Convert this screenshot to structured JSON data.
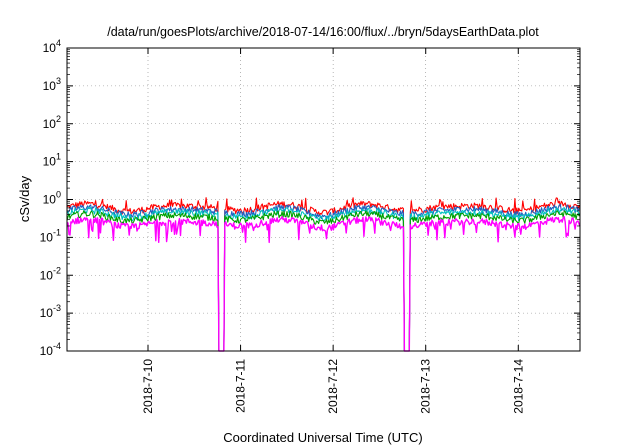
{
  "chart_data": {
    "type": "line",
    "title": "/data/run/goesPlots/archive/2018-07-14/16:00/flux/../bryn/5daysEarthData.plot",
    "xlabel": "Coordinated Universal Time (UTC)",
    "ylabel": "cSv/day",
    "x_range": [
      "2018-07-09T03:00",
      "2018-07-14T16:00"
    ],
    "x_ticks": [
      "2018-7-10",
      "2018-7-11",
      "2018-7-12",
      "2018-7-13",
      "2018-7-14"
    ],
    "y_scale": "log",
    "ylim": [
      0.0001,
      10000
    ],
    "y_ticks": [
      {
        "base": "10",
        "exp": "-4"
      },
      {
        "base": "10",
        "exp": "-3"
      },
      {
        "base": "10",
        "exp": "-2"
      },
      {
        "base": "10",
        "exp": "-1"
      },
      {
        "base": "10",
        "exp": "0"
      },
      {
        "base": "10",
        "exp": "1"
      },
      {
        "base": "10",
        "exp": "2"
      },
      {
        "base": "10",
        "exp": "3"
      },
      {
        "base": "10",
        "exp": "4"
      }
    ],
    "grid": true,
    "legend": "none",
    "series_colors": [
      "#ff0000",
      "#2060c0",
      "#00c0c0",
      "#00a000",
      "#ff00ff"
    ],
    "series_levels": [
      0.62,
      0.5,
      0.42,
      0.34,
      0.24
    ],
    "dropouts": [
      "2018-07-10T19:00",
      "2018-07-12T19:00"
    ]
  }
}
